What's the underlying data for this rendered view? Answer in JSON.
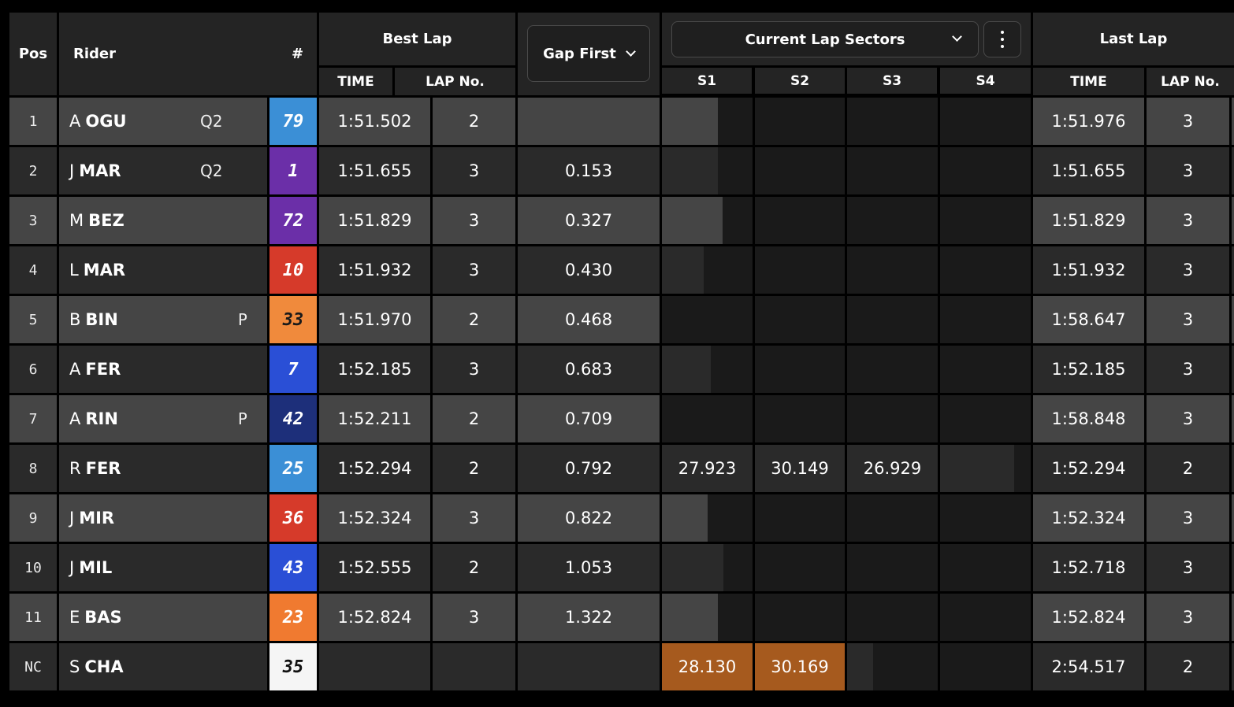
{
  "header": {
    "pos": "Pos",
    "rider": "Rider",
    "number": "#",
    "best_lap": "Best Lap",
    "best_time": "TIME",
    "best_lapno": "LAP No.",
    "gap_select": "Gap First",
    "sectors_select": "Current Lap Sectors",
    "s1": "S1",
    "s2": "S2",
    "s3": "S3",
    "s4": "S4",
    "last_lap": "Last Lap",
    "last_time": "TIME",
    "last_lapno": "LAP No."
  },
  "colors": {
    "row_light": "#454545",
    "row_dark": "#2a2a2a",
    "sector_orange": "#a65a1e",
    "sector_empty": "#1a1a1a"
  },
  "rows": [
    {
      "pos": "1",
      "first": "A",
      "last": "OGU",
      "tag": "Q2",
      "flag": "",
      "number": "79",
      "num_bg": "#3b8fd6",
      "num_fg": "#ffffff",
      "best_time": "1:51.502",
      "best_lap": "2",
      "gap": "",
      "s1": "",
      "s2": "",
      "s3": "",
      "s4": "",
      "s1_fill": 0.62,
      "s2_fill": 0,
      "s3_fill": 0,
      "s4_fill": 0,
      "last_time": "1:51.976",
      "last_lap": "3"
    },
    {
      "pos": "2",
      "first": "J",
      "last": "MAR",
      "tag": "Q2",
      "flag": "",
      "number": "1",
      "num_bg": "#6b2fa8",
      "num_fg": "#ffffff",
      "best_time": "1:51.655",
      "best_lap": "3",
      "gap": "0.153",
      "s1": "",
      "s2": "",
      "s3": "",
      "s4": "",
      "s1_fill": 0.62,
      "s2_fill": 0,
      "s3_fill": 0,
      "s4_fill": 0,
      "last_time": "1:51.655",
      "last_lap": "3"
    },
    {
      "pos": "3",
      "first": "M",
      "last": "BEZ",
      "tag": "",
      "flag": "",
      "number": "72",
      "num_bg": "#6b2fa8",
      "num_fg": "#ffffff",
      "best_time": "1:51.829",
      "best_lap": "3",
      "gap": "0.327",
      "s1": "",
      "s2": "",
      "s3": "",
      "s4": "",
      "s1_fill": 0.67,
      "s2_fill": 0,
      "s3_fill": 0,
      "s4_fill": 0,
      "last_time": "1:51.829",
      "last_lap": "3"
    },
    {
      "pos": "4",
      "first": "L",
      "last": "MAR",
      "tag": "",
      "flag": "",
      "number": "10",
      "num_bg": "#d63a2a",
      "num_fg": "#ffffff",
      "best_time": "1:51.932",
      "best_lap": "3",
      "gap": "0.430",
      "s1": "",
      "s2": "",
      "s3": "",
      "s4": "",
      "s1_fill": 0.46,
      "s2_fill": 0,
      "s3_fill": 0,
      "s4_fill": 0,
      "last_time": "1:51.932",
      "last_lap": "3"
    },
    {
      "pos": "5",
      "first": "B",
      "last": "BIN",
      "tag": "",
      "flag": "P",
      "number": "33",
      "num_bg": "#f08a3c",
      "num_fg": "#1a1a1a",
      "best_time": "1:51.970",
      "best_lap": "2",
      "gap": "0.468",
      "s1": "",
      "s2": "",
      "s3": "",
      "s4": "",
      "s1_fill": 0,
      "s2_fill": 0,
      "s3_fill": 0,
      "s4_fill": 0,
      "last_time": "1:58.647",
      "last_lap": "3"
    },
    {
      "pos": "6",
      "first": "A",
      "last": "FER",
      "tag": "",
      "flag": "",
      "number": "7",
      "num_bg": "#2a4fd6",
      "num_fg": "#ffffff",
      "best_time": "1:52.185",
      "best_lap": "3",
      "gap": "0.683",
      "s1": "",
      "s2": "",
      "s3": "",
      "s4": "",
      "s1_fill": 0.54,
      "s2_fill": 0,
      "s3_fill": 0,
      "s4_fill": 0,
      "last_time": "1:52.185",
      "last_lap": "3"
    },
    {
      "pos": "7",
      "first": "A",
      "last": "RIN",
      "tag": "",
      "flag": "P",
      "number": "42",
      "num_bg": "#1d2f7a",
      "num_fg": "#ffffff",
      "best_time": "1:52.211",
      "best_lap": "2",
      "gap": "0.709",
      "s1": "",
      "s2": "",
      "s3": "",
      "s4": "",
      "s1_fill": 0,
      "s2_fill": 0,
      "s3_fill": 0,
      "s4_fill": 0,
      "last_time": "1:58.848",
      "last_lap": "3"
    },
    {
      "pos": "8",
      "first": "R",
      "last": "FER",
      "tag": "",
      "flag": "",
      "number": "25",
      "num_bg": "#3b8fd6",
      "num_fg": "#ffffff",
      "best_time": "1:52.294",
      "best_lap": "2",
      "gap": "0.792",
      "s1": "27.923",
      "s2": "30.149",
      "s3": "26.929",
      "s4": "",
      "s1_fill": 1,
      "s2_fill": 1,
      "s3_fill": 1,
      "s4_fill": 0.82,
      "last_time": "1:52.294",
      "last_lap": "2"
    },
    {
      "pos": "9",
      "first": "J",
      "last": "MIR",
      "tag": "",
      "flag": "",
      "number": "36",
      "num_bg": "#d63a2a",
      "num_fg": "#ffffff",
      "best_time": "1:52.324",
      "best_lap": "3",
      "gap": "0.822",
      "s1": "",
      "s2": "",
      "s3": "",
      "s4": "",
      "s1_fill": 0.5,
      "s2_fill": 0,
      "s3_fill": 0,
      "s4_fill": 0,
      "last_time": "1:52.324",
      "last_lap": "3"
    },
    {
      "pos": "10",
      "first": "J",
      "last": "MIL",
      "tag": "",
      "flag": "",
      "number": "43",
      "num_bg": "#2a4fd6",
      "num_fg": "#ffffff",
      "best_time": "1:52.555",
      "best_lap": "2",
      "gap": "1.053",
      "s1": "",
      "s2": "",
      "s3": "",
      "s4": "",
      "s1_fill": 0.68,
      "s2_fill": 0,
      "s3_fill": 0,
      "s4_fill": 0,
      "last_time": "1:52.718",
      "last_lap": "3"
    },
    {
      "pos": "11",
      "first": "E",
      "last": "BAS",
      "tag": "",
      "flag": "",
      "number": "23",
      "num_bg": "#f07a30",
      "num_fg": "#ffffff",
      "best_time": "1:52.824",
      "best_lap": "3",
      "gap": "1.322",
      "s1": "",
      "s2": "",
      "s3": "",
      "s4": "",
      "s1_fill": 0.62,
      "s2_fill": 0,
      "s3_fill": 0,
      "s4_fill": 0,
      "last_time": "1:52.824",
      "last_lap": "3"
    },
    {
      "pos": "NC",
      "first": "S",
      "last": "CHA",
      "tag": "",
      "flag": "",
      "number": "35",
      "num_bg": "#f5f5f5",
      "num_fg": "#111111",
      "best_time": "",
      "best_lap": "",
      "gap": "",
      "s1": "28.130",
      "s2": "30.169",
      "s3": "",
      "s4": "",
      "s1_fill": 1,
      "s2_fill": 1,
      "s3_fill": 0.29,
      "s4_fill": 0,
      "s1_color": "#a65a1e",
      "s2_color": "#a65a1e",
      "last_time": "2:54.517",
      "last_lap": "2"
    }
  ]
}
